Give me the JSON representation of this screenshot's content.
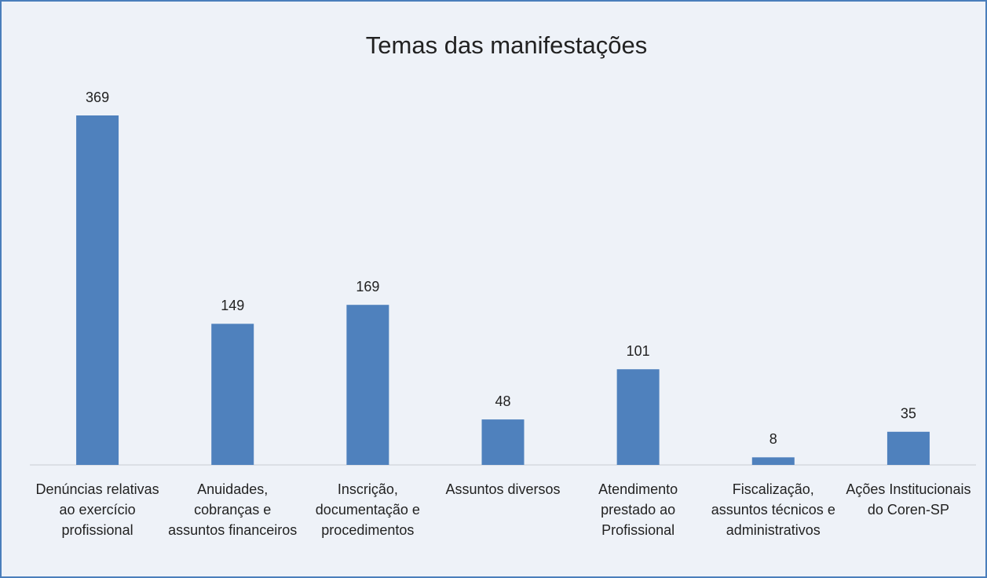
{
  "chart_data": {
    "type": "bar",
    "title": "Temas das manifestações",
    "categories": [
      "Denúncias relativas ao exercício profissional",
      "Anuidades, cobranças e assuntos financeiros",
      "Inscrição, documentação e procedimentos",
      "Assuntos diversos",
      "Atendimento prestado ao Profissional",
      "Fiscalização, assuntos técnicos e administrativos",
      "Ações Institucionais do Coren-SP"
    ],
    "values": [
      369,
      149,
      169,
      48,
      101,
      8,
      35
    ],
    "color": "#4f81bd"
  }
}
